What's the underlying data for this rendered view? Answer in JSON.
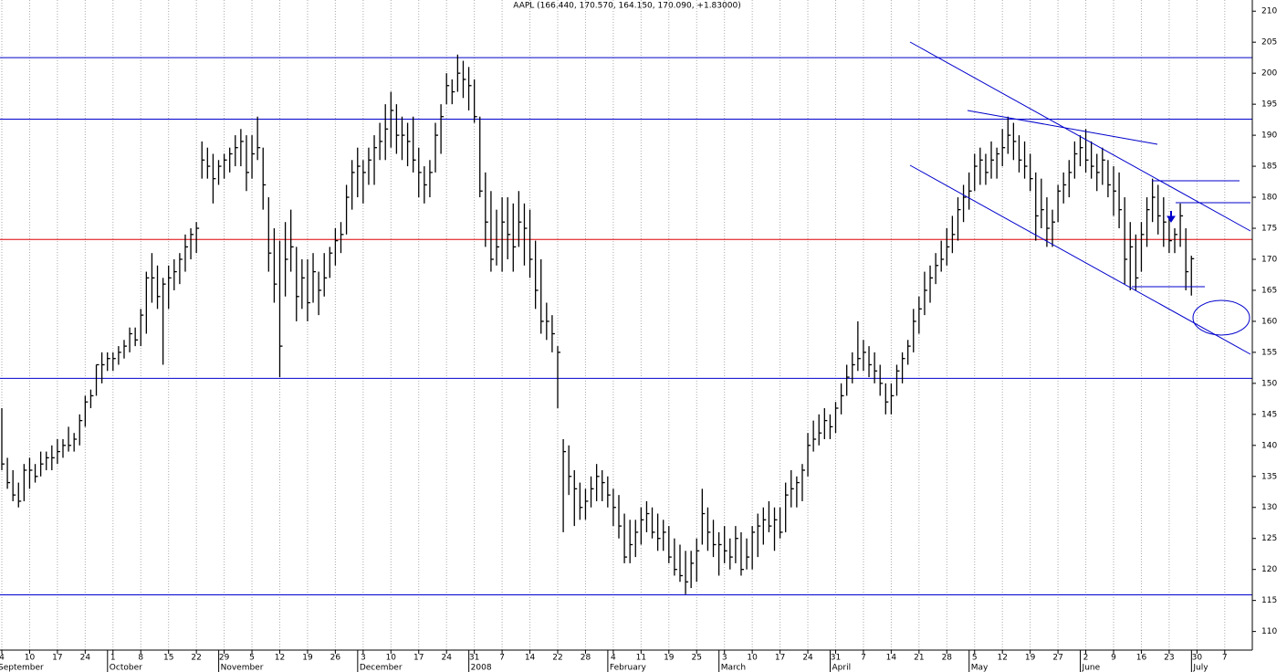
{
  "chart_data": {
    "type": "ohlc",
    "title": "AAPL (166.440, 170.570, 164.150, 170.090, +1.83000)",
    "categories": [
      "4",
      null,
      null,
      null,
      null,
      "10",
      null,
      null,
      null,
      null,
      "17",
      null,
      null,
      null,
      null,
      "24",
      null,
      null,
      null,
      null,
      "1",
      null,
      null,
      null,
      null,
      "8",
      null,
      null,
      null,
      null,
      "15",
      null,
      null,
      null,
      null,
      "22",
      null,
      null,
      null,
      null,
      "29",
      null,
      null,
      null,
      null,
      "5",
      null,
      null,
      null,
      null,
      "12",
      null,
      null,
      null,
      null,
      "19",
      null,
      null,
      null,
      null,
      "26",
      null,
      null,
      null,
      null,
      "3",
      null,
      null,
      null,
      null,
      "10",
      null,
      null,
      null,
      null,
      "17",
      null,
      null,
      null,
      null,
      "24",
      null,
      null,
      null,
      null,
      "31",
      null,
      null,
      null,
      null,
      "7",
      null,
      null,
      null,
      null,
      "14",
      null,
      null,
      null,
      null,
      "22",
      null,
      null,
      null,
      null,
      "28",
      null,
      null,
      null,
      null,
      "4",
      null,
      null,
      null,
      null,
      "11",
      null,
      null,
      null,
      null,
      "19",
      null,
      null,
      null,
      null,
      "25",
      null,
      null,
      null,
      null,
      "3",
      null,
      null,
      null,
      null,
      "10",
      null,
      null,
      null,
      null,
      "17",
      null,
      null,
      null,
      null,
      "24",
      null,
      null,
      null,
      null,
      "31",
      null,
      null,
      null,
      null,
      "7",
      null,
      null,
      null,
      null,
      "14",
      null,
      null,
      null,
      null,
      "21",
      null,
      null,
      null,
      null,
      "28",
      null,
      null,
      null,
      null,
      "5",
      null,
      null,
      null,
      null,
      "12",
      null,
      null,
      null,
      null,
      "19",
      null,
      null,
      null,
      null,
      "27",
      null,
      null,
      null,
      null,
      "2",
      null,
      null,
      null,
      null,
      "9",
      null,
      null,
      null,
      null,
      "16",
      null,
      null,
      null,
      null,
      "23",
      null,
      null,
      null,
      null,
      "30",
      null,
      null,
      null,
      null,
      "7",
      null,
      null,
      null,
      null
    ],
    "months": [
      "September",
      null,
      null,
      null,
      null,
      null,
      null,
      null,
      null,
      null,
      null,
      null,
      null,
      null,
      null,
      null,
      null,
      null,
      null,
      null,
      "October",
      null,
      null,
      null,
      null,
      null,
      null,
      null,
      null,
      null,
      null,
      null,
      null,
      null,
      null,
      null,
      null,
      null,
      null,
      null,
      "November",
      null,
      null,
      null,
      null,
      null,
      null,
      null,
      null,
      null,
      null,
      null,
      null,
      null,
      null,
      null,
      null,
      null,
      null,
      null,
      null,
      null,
      null,
      null,
      null,
      "December",
      null,
      null,
      null,
      null,
      null,
      null,
      null,
      null,
      null,
      null,
      null,
      null,
      null,
      null,
      null,
      null,
      null,
      null,
      null,
      "2008",
      null,
      null,
      null,
      null,
      null,
      null,
      null,
      null,
      null,
      null,
      null,
      null,
      null,
      null,
      null,
      null,
      null,
      null,
      null,
      null,
      null,
      null,
      null,
      null,
      "February",
      null,
      null,
      null,
      null,
      null,
      null,
      null,
      null,
      null,
      null,
      null,
      null,
      null,
      null,
      null,
      null,
      null,
      null,
      null,
      "March",
      null,
      null,
      null,
      null,
      null,
      null,
      null,
      null,
      null,
      null,
      null,
      null,
      null,
      null,
      null,
      null,
      null,
      null,
      null,
      "April",
      null,
      null,
      null,
      null,
      null,
      null,
      null,
      null,
      null,
      null,
      null,
      null,
      null,
      null,
      null,
      null,
      null,
      null,
      null,
      null,
      null,
      null,
      null,
      null,
      "May",
      null,
      null,
      null,
      null,
      null,
      null,
      null,
      null,
      null,
      null,
      null,
      null,
      null,
      null,
      null,
      null,
      null,
      null,
      null,
      "June",
      null,
      null,
      null,
      null,
      null,
      null,
      null,
      null,
      null,
      null,
      null,
      null,
      null,
      null,
      null,
      null,
      null,
      null,
      null,
      "July",
      null,
      null,
      null,
      null,
      null,
      null,
      null,
      null,
      null
    ],
    "bars": [
      [
        146,
        136,
        137
      ],
      [
        138,
        133,
        134
      ],
      [
        136,
        131,
        132
      ],
      [
        134,
        130,
        131
      ],
      [
        137,
        131,
        136
      ],
      [
        138,
        133,
        136
      ],
      [
        137,
        134,
        135
      ],
      [
        139,
        135,
        137
      ],
      [
        139,
        136,
        138
      ],
      [
        140,
        136,
        138
      ],
      [
        141,
        137,
        139
      ],
      [
        141,
        138,
        140
      ],
      [
        143,
        139,
        140
      ],
      [
        142,
        139,
        141
      ],
      [
        145,
        140,
        144
      ],
      [
        148,
        143,
        147
      ],
      [
        149,
        146,
        148
      ],
      [
        153,
        148,
        153
      ],
      [
        155,
        150,
        153
      ],
      [
        155,
        152,
        154
      ],
      [
        155,
        152,
        154
      ],
      [
        156,
        153,
        155
      ],
      [
        157,
        154,
        156
      ],
      [
        159,
        155,
        158
      ],
      [
        159,
        156,
        157
      ],
      [
        162,
        156,
        161
      ],
      [
        168,
        158,
        167
      ],
      [
        171,
        163,
        167
      ],
      [
        169,
        162,
        164
      ],
      [
        167,
        153,
        166
      ],
      [
        169,
        162,
        167
      ],
      [
        170,
        165,
        168
      ],
      [
        171,
        166,
        170
      ],
      [
        174,
        168,
        172
      ],
      [
        175,
        170,
        174
      ],
      [
        176,
        171,
        175
      ],
      [
        189,
        183,
        186
      ],
      [
        188,
        183,
        185
      ],
      [
        187,
        179,
        183
      ],
      [
        186,
        182,
        185
      ],
      [
        187,
        183,
        186
      ],
      [
        188,
        184,
        187
      ],
      [
        190,
        185,
        188
      ],
      [
        191,
        185,
        189
      ],
      [
        190,
        181,
        184
      ],
      [
        190,
        183,
        187
      ],
      [
        193,
        186,
        188
      ],
      [
        188,
        178,
        182
      ],
      [
        180,
        168,
        171
      ],
      [
        175,
        163,
        166
      ],
      [
        173,
        151,
        156
      ],
      [
        176,
        164,
        170
      ],
      [
        178,
        168,
        172
      ],
      [
        172,
        160,
        164
      ],
      [
        170,
        162,
        167
      ],
      [
        170,
        160,
        163
      ],
      [
        171,
        163,
        168
      ],
      [
        168,
        161,
        165
      ],
      [
        171,
        164,
        167
      ],
      [
        172,
        167,
        171
      ],
      [
        175,
        169,
        173
      ],
      [
        176,
        171,
        174
      ],
      [
        182,
        174,
        180
      ],
      [
        186,
        178,
        184
      ],
      [
        188,
        180,
        185
      ],
      [
        186,
        179,
        184
      ],
      [
        188,
        182,
        186
      ],
      [
        190,
        182,
        188
      ],
      [
        192,
        186,
        189
      ],
      [
        195,
        186,
        191
      ],
      [
        197,
        188,
        194
      ],
      [
        195,
        187,
        190
      ],
      [
        193,
        186,
        190
      ],
      [
        192,
        185,
        189
      ],
      [
        193,
        184,
        186
      ],
      [
        188,
        180,
        184
      ],
      [
        185,
        179,
        182
      ],
      [
        186,
        180,
        184
      ],
      [
        192,
        184,
        190
      ],
      [
        195,
        187,
        193
      ],
      [
        200,
        195,
        198
      ],
      [
        199,
        195,
        197
      ],
      [
        203,
        197,
        200
      ],
      [
        202,
        196,
        199
      ],
      [
        201,
        194,
        198
      ],
      [
        199,
        192,
        193
      ],
      [
        193,
        180,
        181
      ],
      [
        184,
        172,
        176
      ],
      [
        181,
        168,
        170
      ],
      [
        178,
        169,
        172
      ],
      [
        180,
        168,
        176
      ],
      [
        180,
        170,
        174
      ],
      [
        179,
        168,
        172
      ],
      [
        181,
        172,
        176
      ],
      [
        179,
        169,
        175
      ],
      [
        178,
        167,
        170
      ],
      [
        173,
        162,
        165
      ],
      [
        170,
        158,
        160
      ],
      [
        163,
        157,
        160
      ],
      [
        161,
        155,
        158
      ],
      [
        156,
        146,
        155
      ],
      [
        141,
        126,
        139
      ],
      [
        140,
        132,
        135
      ],
      [
        136,
        127,
        133
      ],
      [
        134,
        128,
        130
      ],
      [
        133,
        128,
        131
      ],
      [
        135,
        130,
        133
      ],
      [
        137,
        131,
        135
      ],
      [
        136,
        131,
        134
      ],
      [
        135,
        130,
        132
      ],
      [
        133,
        127,
        130
      ],
      [
        132,
        125,
        127
      ],
      [
        129,
        121,
        122
      ],
      [
        128,
        121,
        124
      ],
      [
        128,
        122,
        126
      ],
      [
        130,
        124,
        128
      ],
      [
        131,
        126,
        129
      ],
      [
        130,
        125,
        126
      ],
      [
        129,
        123,
        125
      ],
      [
        128,
        123,
        126
      ],
      [
        127,
        121,
        122
      ],
      [
        125,
        119,
        120
      ],
      [
        124,
        118,
        119
      ],
      [
        123,
        116,
        118
      ],
      [
        123,
        117,
        121
      ],
      [
        125,
        118,
        123
      ],
      [
        133,
        124,
        129
      ],
      [
        130,
        123,
        126
      ],
      [
        128,
        122,
        124
      ],
      [
        126,
        119,
        124
      ],
      [
        127,
        121,
        123
      ],
      [
        125,
        120,
        122
      ],
      [
        127,
        121,
        125
      ],
      [
        126,
        119,
        120
      ],
      [
        125,
        120,
        122
      ],
      [
        127,
        120,
        126
      ],
      [
        129,
        122,
        127
      ],
      [
        130,
        124,
        128
      ],
      [
        131,
        126,
        127
      ],
      [
        130,
        123,
        128
      ],
      [
        130,
        125,
        126
      ],
      [
        134,
        126,
        132
      ],
      [
        136,
        130,
        133
      ],
      [
        135,
        130,
        134
      ],
      [
        137,
        131,
        136
      ],
      [
        142,
        135,
        140
      ],
      [
        144,
        139,
        141
      ],
      [
        145,
        140,
        142
      ],
      [
        146,
        141,
        144
      ],
      [
        145,
        141,
        143
      ],
      [
        147,
        142,
        146
      ],
      [
        150,
        145,
        148
      ],
      [
        153,
        148,
        151
      ],
      [
        155,
        150,
        153
      ],
      [
        160,
        152,
        154
      ],
      [
        157,
        152,
        155
      ],
      [
        156,
        151,
        153
      ],
      [
        155,
        150,
        152
      ],
      [
        153,
        148,
        150
      ],
      [
        150,
        145,
        147
      ],
      [
        150,
        145,
        148
      ],
      [
        153,
        148,
        152
      ],
      [
        155,
        150,
        154
      ],
      [
        157,
        153,
        156
      ],
      [
        162,
        155,
        160
      ],
      [
        164,
        158,
        162
      ],
      [
        168,
        161,
        165
      ],
      [
        169,
        163,
        167
      ],
      [
        171,
        166,
        169
      ],
      [
        173,
        168,
        170
      ],
      [
        175,
        169,
        172
      ],
      [
        177,
        171,
        174
      ],
      [
        180,
        173,
        178
      ],
      [
        182,
        176,
        180
      ],
      [
        184,
        178,
        181
      ],
      [
        187,
        181,
        185
      ],
      [
        188,
        182,
        186
      ],
      [
        187,
        182,
        184
      ],
      [
        189,
        183,
        186
      ],
      [
        188,
        183,
        187
      ],
      [
        191,
        185,
        188
      ],
      [
        193,
        187,
        190
      ],
      [
        192,
        186,
        189
      ],
      [
        190,
        184,
        186
      ],
      [
        189,
        183,
        185
      ],
      [
        187,
        181,
        183
      ],
      [
        184,
        173,
        177
      ],
      [
        183,
        175,
        178
      ],
      [
        180,
        172,
        175
      ],
      [
        178,
        172,
        176
      ],
      [
        182,
        176,
        181
      ],
      [
        184,
        179,
        182
      ],
      [
        186,
        180,
        184
      ],
      [
        189,
        183,
        187
      ],
      [
        190,
        185,
        188
      ],
      [
        191,
        184,
        186
      ],
      [
        189,
        183,
        185
      ],
      [
        187,
        181,
        184
      ],
      [
        188,
        182,
        186
      ],
      [
        186,
        180,
        182
      ],
      [
        185,
        177,
        181
      ],
      [
        184,
        175,
        178
      ],
      [
        180,
        166,
        170
      ],
      [
        176,
        165,
        172
      ],
      [
        174,
        165,
        167
      ],
      [
        176,
        168,
        174
      ],
      [
        180,
        172,
        178
      ],
      [
        183,
        176,
        180
      ],
      [
        182,
        174,
        177
      ],
      [
        180,
        172,
        176
      ],
      [
        177,
        171,
        173
      ],
      [
        175,
        171,
        174
      ],
      [
        179,
        172,
        177
      ],
      [
        175,
        165,
        168
      ],
      [
        170.57,
        164.15,
        170.09
      ],
      null,
      null,
      null,
      null,
      null,
      null,
      null,
      null,
      null,
      null
    ],
    "bar_color": "#000000",
    "hlines": [
      {
        "value": 202.5,
        "color": "#0000cc"
      },
      {
        "value": 192.6,
        "color": "#0000cc"
      },
      {
        "value": 173.2,
        "color": "#dd0000"
      },
      {
        "value": 150.8,
        "color": "#0000cc"
      },
      {
        "value": 115.9,
        "color": "#0000cc"
      }
    ],
    "ylim": [
      107,
      211.8
    ],
    "yticks": [
      110,
      115,
      120,
      125,
      130,
      135,
      140,
      145,
      150,
      155,
      160,
      165,
      170,
      175,
      180,
      185,
      190,
      195,
      200,
      205,
      210
    ],
    "grid": "x"
  }
}
